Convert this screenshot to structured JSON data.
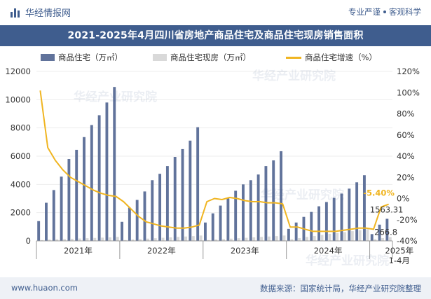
{
  "header": {
    "brand": "华经情报网",
    "tagline_left": "专业严谨",
    "tagline_right": "客观科学"
  },
  "footer": {
    "url": "www.huaon.com",
    "source": "数据来源：国家统计局，华经产业研究院整理"
  },
  "watermark": "华经产业研究院",
  "colors": {
    "primary": "#3f5d8e",
    "bar1": "#61739b",
    "bar2": "#d9d9d9",
    "line": "#f0b521",
    "annot": "#f0b521"
  },
  "chart_data": {
    "type": "bar",
    "title": "2021-2025年4月四川省房地产商品住宅及商品住宅现房销售面积",
    "legend": [
      "商品住宅（万㎡）",
      "商品住宅现房（万㎡）",
      "商品住宅增速（%）"
    ],
    "x_labels": [
      "2021年",
      "2022年",
      "2023年",
      "2024年",
      "2025年",
      "1-4月"
    ],
    "y_left_ticks": [
      "0",
      "2000",
      "4000",
      "6000",
      "8000",
      "10000",
      "12000"
    ],
    "y_right_ticks": [
      "-40%",
      "-20%",
      "0%",
      "20%",
      "40%",
      "60%",
      "80%",
      "100%",
      "120%"
    ],
    "ylim_left": [
      0,
      12000
    ],
    "ylim_right": [
      -40,
      120
    ],
    "series": [
      {
        "name": "商品住宅（万㎡）",
        "axis": "left",
        "kind": "bar",
        "values": [
          1400,
          2700,
          3600,
          4550,
          5800,
          6450,
          7350,
          8200,
          8900,
          9800,
          10900,
          1350,
          2350,
          2900,
          3500,
          4300,
          4750,
          5300,
          5950,
          6500,
          7100,
          8050,
          1300,
          1950,
          2500,
          3000,
          3550,
          4000,
          4300,
          4700,
          5300,
          5700,
          6350,
          850,
          1300,
          1700,
          2050,
          2450,
          2750,
          3050,
          3350,
          3700,
          4150,
          4650,
          480,
          1150,
          1563.31
        ]
      },
      {
        "name": "商品住宅现房（万㎡）",
        "axis": "left",
        "kind": "bar",
        "values": [
          60,
          90,
          110,
          130,
          150,
          170,
          190,
          210,
          230,
          250,
          280,
          60,
          100,
          130,
          160,
          190,
          220,
          250,
          280,
          310,
          340,
          380,
          60,
          100,
          130,
          160,
          190,
          220,
          250,
          280,
          310,
          340,
          380,
          120,
          200,
          280,
          350,
          420,
          500,
          560,
          620,
          690,
          760,
          830,
          120,
          200,
          266.8
        ]
      },
      {
        "name": "商品住宅增速（%）",
        "axis": "right",
        "kind": "line",
        "values": [
          102,
          48,
          36,
          27,
          20,
          16,
          12,
          8,
          5,
          3,
          2,
          -3,
          -10,
          -17,
          -22,
          -24,
          -26,
          -27,
          -28,
          -28,
          -27,
          -25,
          -3,
          0,
          -1,
          1,
          0,
          -2,
          -3,
          -3,
          -4,
          -4,
          -5,
          -27,
          -27,
          -29,
          -31,
          -31,
          -31,
          -31,
          -30,
          -29,
          -28,
          -28,
          -29,
          -8,
          -5.4
        ]
      }
    ],
    "annotations": [
      {
        "series": "商品住宅增速（%）",
        "index": 46,
        "text": "-5.40%"
      },
      {
        "series": "商品住宅（万㎡）",
        "index": 46,
        "text": "1563.31"
      },
      {
        "series": "商品住宅现房（万㎡）",
        "index": 46,
        "text": "266.8"
      }
    ]
  }
}
